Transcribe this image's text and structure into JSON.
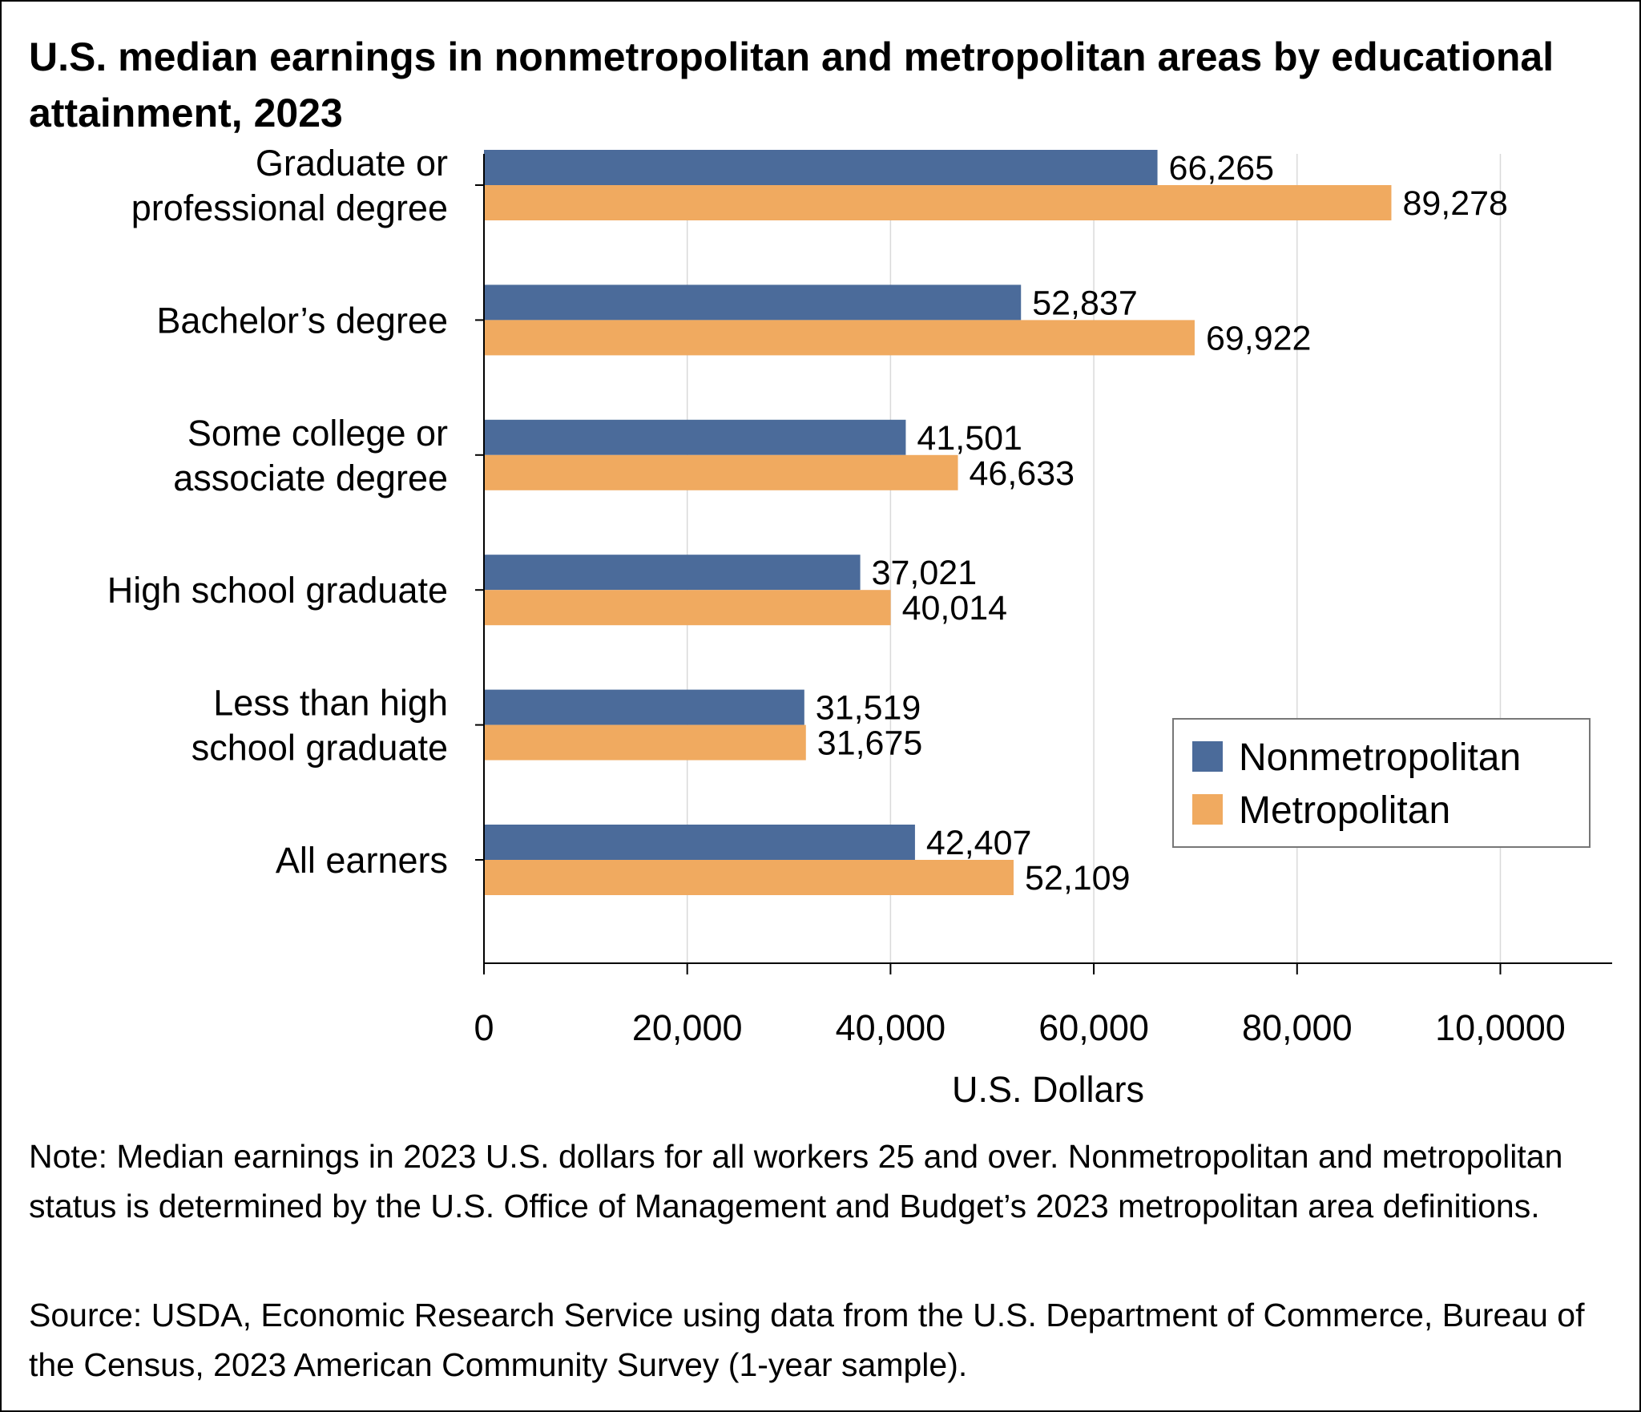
{
  "chart_data": {
    "type": "bar",
    "orientation": "horizontal",
    "title": "U.S. median earnings in nonmetropolitan and metropolitan areas by educational attainment, 2023",
    "categories": [
      [
        "Graduate or",
        "professional degree"
      ],
      [
        "Bachelor’s degree"
      ],
      [
        "Some college or",
        "associate degree"
      ],
      [
        "High school graduate"
      ],
      [
        "Less than high",
        "school graduate"
      ],
      [
        "All earners"
      ]
    ],
    "series": [
      {
        "name": "Nonmetropolitan",
        "color": "#4b6b9a",
        "values": [
          66265,
          52837,
          41501,
          37021,
          31519,
          42407
        ],
        "labels": [
          "66,265",
          "52,837",
          "41,501",
          "37,021",
          "31,519",
          "42,407"
        ]
      },
      {
        "name": "Metropolitan",
        "color": "#f0aa60",
        "values": [
          89278,
          69922,
          46633,
          40014,
          31675,
          52109
        ],
        "labels": [
          "89,278",
          "69,922",
          "46,633",
          "40,014",
          "31,675",
          "52,109"
        ]
      }
    ],
    "x_ticks": [
      0,
      20000,
      40000,
      60000,
      80000,
      100000
    ],
    "x_tick_labels": [
      "0",
      "20,000",
      "40,000",
      "60,000",
      "80,000",
      "10,0000"
    ],
    "xlim": [
      0,
      111000
    ],
    "xlabel": "U.S. Dollars",
    "ylabel": "",
    "grid": "vertical",
    "legend_position": "lower-right"
  },
  "footer": {
    "note": "Note: Median earnings in 2023 U.S. dollars for all workers 25 and over. Nonmetropolitan and metropolitan status is determined by the U.S. Office of Management and Budget’s 2023 metropolitan area definitions.",
    "source": "Source: USDA, Economic Research Service using data from the U.S. Department of Commerce, Bureau of the Census, 2023 American Community Survey (1-year sample)."
  }
}
